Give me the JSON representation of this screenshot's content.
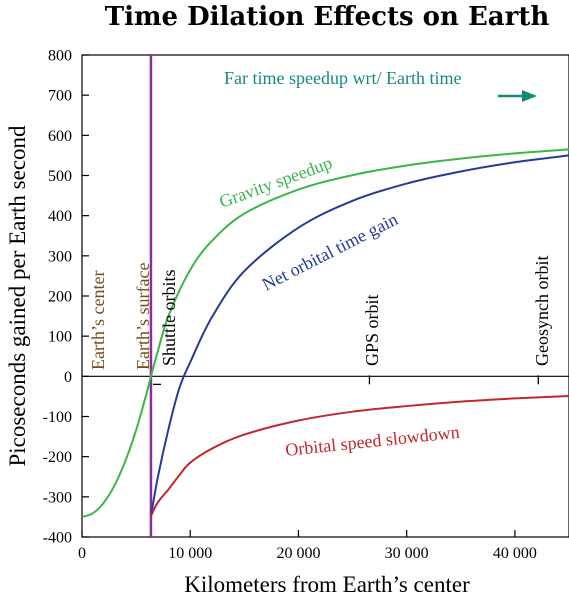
{
  "chart_data": {
    "type": "line",
    "title": "Time Dilation Effects on Earth",
    "xlabel": "Kilometers from Earth’s center",
    "ylabel": "Picoseconds gained per Earth second",
    "xlim": [
      0,
      45000
    ],
    "ylim": [
      -400,
      800
    ],
    "xticks": [
      {
        "value": 0,
        "label": "0"
      },
      {
        "value": 10000,
        "label": "10 000"
      },
      {
        "value": 20000,
        "label": "20 000"
      },
      {
        "value": 30000,
        "label": "30 000"
      },
      {
        "value": 40000,
        "label": "40 000"
      }
    ],
    "yticks": [
      {
        "value": -400,
        "label": "-400"
      },
      {
        "value": -300,
        "label": "-300"
      },
      {
        "value": -200,
        "label": "-200"
      },
      {
        "value": -100,
        "label": "-100"
      },
      {
        "value": 0,
        "label": "0"
      },
      {
        "value": 100,
        "label": "100"
      },
      {
        "value": 200,
        "label": "200"
      },
      {
        "value": 300,
        "label": "300"
      },
      {
        "value": 400,
        "label": "400"
      },
      {
        "value": 500,
        "label": "500"
      },
      {
        "value": 600,
        "label": "600"
      },
      {
        "value": 700,
        "label": "700"
      },
      {
        "value": 800,
        "label": "800"
      }
    ],
    "grid": false,
    "series": [
      {
        "name": "Gravity speedup",
        "color": "#3cb64a",
        "x": [
          0,
          1000,
          2000,
          3000,
          4000,
          5000,
          6000,
          6371,
          7000,
          8000,
          10000,
          12000,
          15000,
          20000,
          25000,
          30000,
          35000,
          40000,
          45000
        ],
        "y": [
          -350,
          -341,
          -315,
          -272,
          -211,
          -134,
          -39,
          0,
          62,
          151,
          265,
          337,
          405,
          465,
          501,
          525,
          542,
          555,
          565
        ]
      },
      {
        "name": "Net orbital time gain",
        "color": "#253b97",
        "x": [
          6371,
          7000,
          8000,
          9000,
          10000,
          12000,
          15000,
          20000,
          25000,
          30000,
          35000,
          40000,
          45000
        ],
        "y": [
          -348,
          -252,
          -130,
          -29,
          35,
          147,
          262,
          370,
          437,
          480,
          510,
          533,
          550
        ]
      },
      {
        "name": "Orbital speed slowdown",
        "color": "#c1272d",
        "x": [
          6371,
          7000,
          8000,
          9000,
          10000,
          12000,
          15000,
          20000,
          25000,
          30000,
          35000,
          40000,
          45000
        ],
        "y": [
          -348,
          -314,
          -281,
          -246,
          -215,
          -180,
          -145,
          -110,
          -88,
          -74,
          -63,
          -55,
          -49
        ]
      }
    ],
    "vertical_markers": [
      {
        "name": "Earth’s surface",
        "x": 6371,
        "color": "#8a2c9c"
      }
    ],
    "annotations": [
      {
        "text": "Far time speedup wrt/ Earth time",
        "color": "#168a7a"
      },
      {
        "text": "Gravity speedup",
        "color": "#3cb64a"
      },
      {
        "text": "Net orbital time gain",
        "color": "#253b97"
      },
      {
        "text": "Orbital speed slowdown",
        "color": "#c1272d"
      },
      {
        "text": "Earth’s center",
        "color": "#7a4a1e"
      },
      {
        "text": "Earth’s surface",
        "color": "#7a4a1e"
      },
      {
        "text": "Shuttle orbits",
        "color": "#000000"
      },
      {
        "text": "GPS orbit",
        "color": "#000000"
      },
      {
        "text": "Geosynch orbit",
        "color": "#000000"
      }
    ]
  }
}
